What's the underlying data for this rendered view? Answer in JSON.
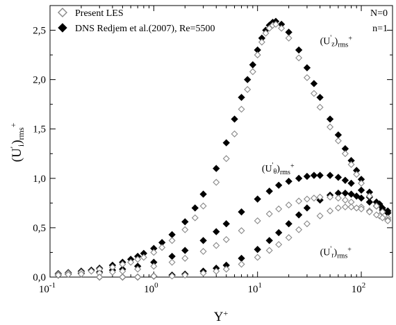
{
  "chart_data": {
    "type": "scatter",
    "x_scale": "log",
    "xlim": [
      0.1,
      200
    ],
    "ylim": [
      0,
      2.75
    ],
    "xlabel": "Y+",
    "ylabel": "(U'i)rms+",
    "x_ticks": [
      0.1,
      1,
      10,
      100
    ],
    "x_tick_labels": [
      {
        "base": "10",
        "exp": "-1"
      },
      {
        "base": "10",
        "exp": "0"
      },
      {
        "base": "10",
        "exp": "1"
      },
      {
        "base": "10",
        "exp": "2"
      }
    ],
    "y_ticks": [
      0,
      0.5,
      1.0,
      1.5,
      2.0,
      2.5
    ],
    "y_tick_labels": [
      "0,0",
      "0,5",
      "1,0",
      "1,5",
      "2,0",
      "2,5"
    ],
    "legend": {
      "position": "top-left",
      "entries": [
        {
          "label": "Present LES",
          "marker": "diamond-open"
        },
        {
          "label": "DNS Redjem et al.(2007), Re=5500",
          "marker": "diamond-filled"
        }
      ]
    },
    "params_text": [
      "N=0",
      "n=1"
    ],
    "annotations": [
      {
        "component": "z",
        "x": 40,
        "y": 2.36
      },
      {
        "component": "θ",
        "x": 11,
        "y": 1.07
      },
      {
        "component": "r",
        "x": 40,
        "y": 0.22
      }
    ],
    "annotation_base": "(U'",
    "annotation_tail": ")rms+",
    "series": [
      {
        "name": "Present LES",
        "component": "z",
        "marker": "diamond-open",
        "color": "#888888",
        "x": [
          0.12,
          0.15,
          0.2,
          0.25,
          0.3,
          0.4,
          0.5,
          0.6,
          0.7,
          0.8,
          1.0,
          1.2,
          1.5,
          2,
          2.5,
          3,
          4,
          5,
          6,
          7,
          8,
          9,
          10,
          11,
          12,
          13,
          14,
          15,
          17,
          20,
          25,
          30,
          35,
          40,
          50,
          60,
          70,
          80,
          90,
          100,
          120,
          140,
          160,
          180
        ],
        "y": [
          0.03,
          0.04,
          0.05,
          0.06,
          0.08,
          0.1,
          0.13,
          0.15,
          0.18,
          0.2,
          0.25,
          0.3,
          0.37,
          0.48,
          0.6,
          0.72,
          0.96,
          1.2,
          1.45,
          1.7,
          1.9,
          2.08,
          2.25,
          2.38,
          2.47,
          2.52,
          2.55,
          2.56,
          2.52,
          2.42,
          2.22,
          2.02,
          1.86,
          1.72,
          1.52,
          1.38,
          1.25,
          1.14,
          1.04,
          0.95,
          0.82,
          0.72,
          0.66,
          0.6
        ]
      },
      {
        "name": "DNS Redjem et al.(2007), Re=5500",
        "component": "z",
        "marker": "diamond-filled",
        "color": "#000000",
        "x": [
          0.12,
          0.15,
          0.2,
          0.25,
          0.3,
          0.4,
          0.5,
          0.6,
          0.7,
          0.8,
          1.0,
          1.2,
          1.5,
          2,
          2.5,
          3,
          4,
          5,
          6,
          7,
          8,
          9,
          10,
          11,
          12,
          13,
          14,
          15,
          17,
          20,
          25,
          30,
          35,
          40,
          50,
          60,
          70,
          80,
          90,
          100,
          120,
          140,
          160,
          180
        ],
        "y": [
          0.035,
          0.045,
          0.06,
          0.07,
          0.09,
          0.12,
          0.15,
          0.18,
          0.21,
          0.24,
          0.29,
          0.35,
          0.43,
          0.56,
          0.7,
          0.84,
          1.1,
          1.36,
          1.6,
          1.82,
          2.0,
          2.15,
          2.3,
          2.42,
          2.5,
          2.55,
          2.58,
          2.59,
          2.56,
          2.48,
          2.3,
          2.12,
          1.96,
          1.82,
          1.6,
          1.44,
          1.3,
          1.18,
          1.08,
          0.99,
          0.86,
          0.76,
          0.7,
          0.65
        ]
      },
      {
        "name": "Present LES",
        "component": "θ",
        "marker": "diamond-open",
        "color": "#888888",
        "x": [
          0.12,
          0.15,
          0.2,
          0.3,
          0.4,
          0.5,
          0.7,
          1.0,
          1.5,
          2,
          3,
          4,
          5,
          7,
          10,
          13,
          16,
          20,
          25,
          30,
          35,
          40,
          50,
          60,
          70,
          80,
          100,
          120,
          150,
          180
        ],
        "y": [
          0.02,
          0.025,
          0.03,
          0.04,
          0.05,
          0.06,
          0.08,
          0.11,
          0.15,
          0.19,
          0.26,
          0.32,
          0.38,
          0.47,
          0.57,
          0.64,
          0.69,
          0.73,
          0.77,
          0.79,
          0.8,
          0.81,
          0.81,
          0.8,
          0.78,
          0.76,
          0.71,
          0.67,
          0.62,
          0.58
        ]
      },
      {
        "name": "DNS Redjem et al.(2007), Re=5500",
        "component": "θ",
        "marker": "diamond-filled",
        "color": "#000000",
        "x": [
          0.12,
          0.15,
          0.2,
          0.3,
          0.4,
          0.5,
          0.7,
          1.0,
          1.5,
          2,
          3,
          4,
          5,
          7,
          10,
          13,
          16,
          20,
          25,
          30,
          35,
          40,
          50,
          60,
          70,
          80,
          100,
          120,
          150,
          180
        ],
        "y": [
          0.02,
          0.03,
          0.04,
          0.05,
          0.07,
          0.08,
          0.11,
          0.15,
          0.21,
          0.27,
          0.37,
          0.46,
          0.54,
          0.66,
          0.79,
          0.87,
          0.93,
          0.97,
          1.0,
          1.02,
          1.03,
          1.03,
          1.03,
          1.01,
          0.98,
          0.95,
          0.88,
          0.81,
          0.74,
          0.67
        ]
      },
      {
        "name": "Present LES",
        "component": "r",
        "marker": "diamond-open",
        "color": "#888888",
        "x": [
          0.3,
          0.5,
          0.7,
          1.0,
          1.5,
          2,
          3,
          4,
          5,
          7,
          10,
          13,
          16,
          20,
          25,
          30,
          40,
          50,
          60,
          70,
          80,
          90,
          100,
          120,
          140,
          160,
          180
        ],
        "y": [
          0.0,
          0.0,
          0.0,
          0.01,
          0.01,
          0.02,
          0.04,
          0.06,
          0.08,
          0.13,
          0.2,
          0.27,
          0.33,
          0.4,
          0.48,
          0.54,
          0.62,
          0.67,
          0.7,
          0.71,
          0.71,
          0.7,
          0.69,
          0.66,
          0.63,
          0.6,
          0.57
        ]
      },
      {
        "name": "DNS Redjem et al.(2007), Re=5500",
        "component": "r",
        "marker": "diamond-filled",
        "color": "#000000",
        "x": [
          0.3,
          0.5,
          0.7,
          1.0,
          1.5,
          2,
          3,
          4,
          5,
          7,
          10,
          13,
          16,
          20,
          25,
          30,
          40,
          50,
          60,
          70,
          80,
          90,
          100,
          120,
          140,
          160,
          180
        ],
        "y": [
          0.0,
          0.0,
          0.0,
          0.01,
          0.02,
          0.03,
          0.06,
          0.09,
          0.12,
          0.19,
          0.28,
          0.37,
          0.45,
          0.54,
          0.63,
          0.7,
          0.78,
          0.83,
          0.85,
          0.85,
          0.84,
          0.82,
          0.8,
          0.76,
          0.72,
          0.68,
          0.65
        ]
      }
    ]
  }
}
